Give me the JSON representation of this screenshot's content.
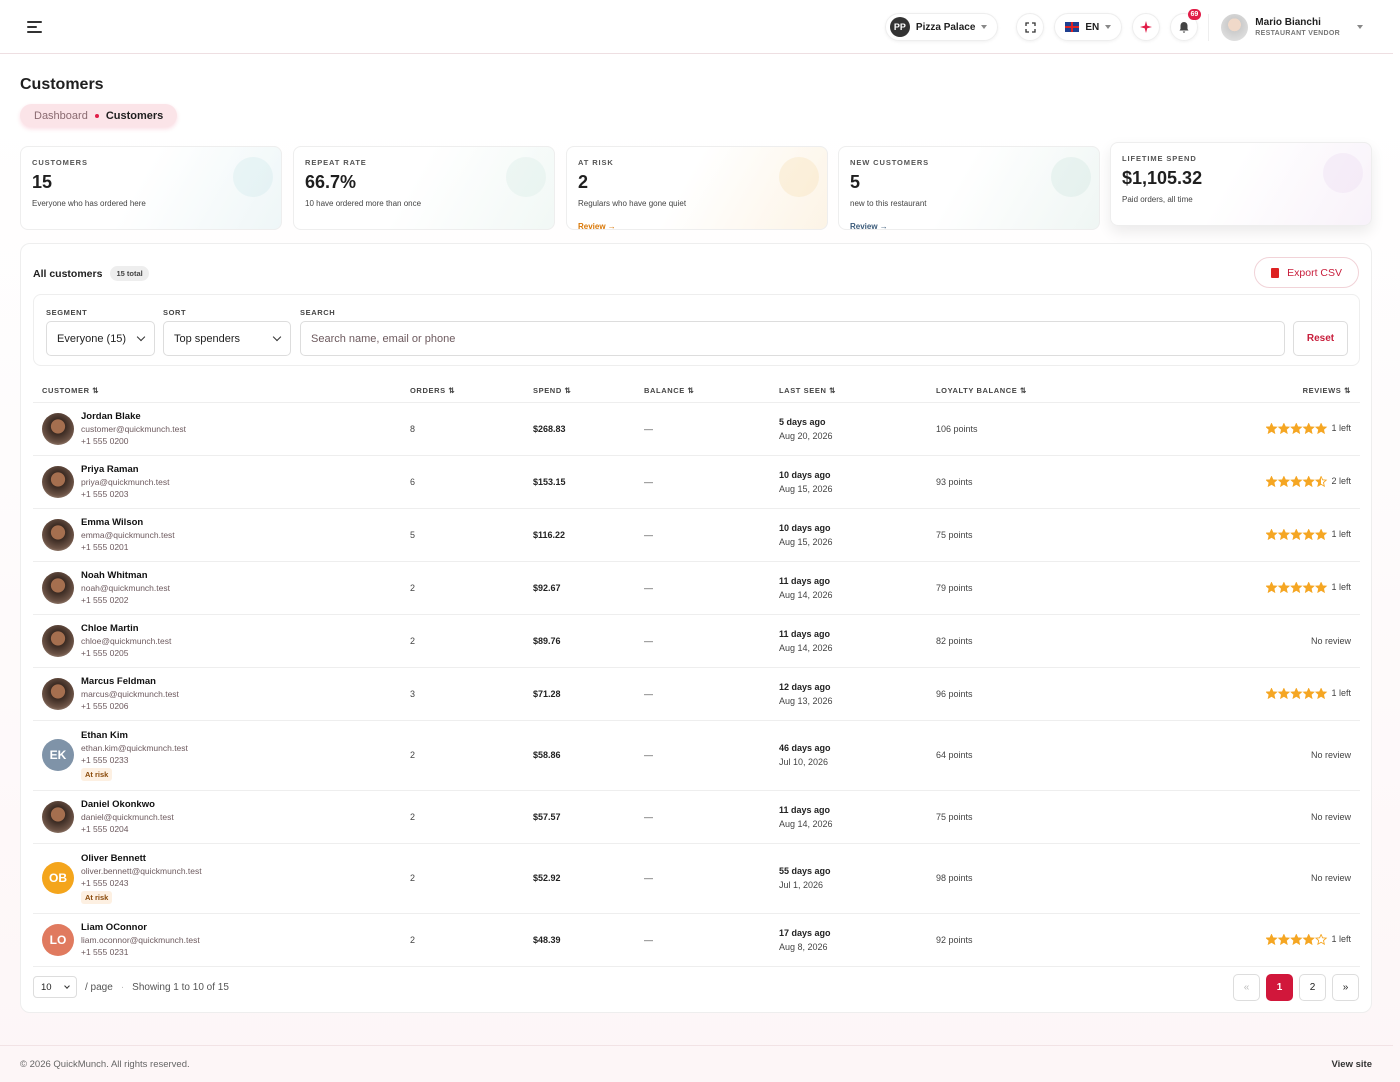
{
  "header": {
    "restaurant_initials": "PP",
    "restaurant": "Pizza Palace",
    "language": "EN",
    "notifications": "69",
    "user_name": "Mario Bianchi",
    "user_role": "RESTAURANT VENDOR"
  },
  "page": {
    "title": "Customers",
    "breadcrumb": [
      "Dashboard",
      "Customers"
    ]
  },
  "stats": [
    {
      "label": "CUSTOMERS",
      "value": "15",
      "note": "Everyone who has ordered here"
    },
    {
      "label": "REPEAT RATE",
      "value": "66.7%",
      "note": "10 have ordered more than once"
    },
    {
      "label": "AT RISK",
      "value": "2",
      "note": "Regulars who have gone quiet",
      "link": "Review"
    },
    {
      "label": "NEW CUSTOMERS",
      "value": "5",
      "note": "new to this restaurant",
      "link": "Review"
    },
    {
      "label": "LIFETIME SPEND",
      "value": "$1,105.32",
      "note": "Paid orders, all time"
    }
  ],
  "card": {
    "title": "All customers",
    "total": "15 total",
    "export": "Export CSV"
  },
  "filters": {
    "segment_label": "SEGMENT",
    "segment": "Everyone (15)",
    "sort_label": "SORT",
    "sort": "Top spenders",
    "search_label": "SEARCH",
    "search_placeholder": "Search name, email or phone",
    "reset": "Reset"
  },
  "table": {
    "columns": [
      "CUSTOMER",
      "ORDERS",
      "SPEND",
      "BALANCE",
      "LAST SEEN",
      "LOYALTY BALANCE",
      "REVIEWS"
    ],
    "rows": [
      {
        "name": "Jordan Blake",
        "email": "customer@quickmunch.test",
        "phone": "+1 555 0200",
        "orders": 8,
        "spend": "$268.83",
        "balance": "—",
        "last_seen": "5 days ago",
        "last_seen_date": "Aug 20, 2026",
        "loyalty": "106 points",
        "stars": 5,
        "reviews": "1 left"
      },
      {
        "name": "Priya Raman",
        "email": "priya@quickmunch.test",
        "phone": "+1 555 0203",
        "orders": 6,
        "spend": "$153.15",
        "balance": "—",
        "last_seen": "10 days ago",
        "last_seen_date": "Aug 15, 2026",
        "loyalty": "93 points",
        "stars": 4.5,
        "reviews": "2 left"
      },
      {
        "name": "Emma Wilson",
        "email": "emma@quickmunch.test",
        "phone": "+1 555 0201",
        "orders": 5,
        "spend": "$116.22",
        "balance": "—",
        "last_seen": "10 days ago",
        "last_seen_date": "Aug 15, 2026",
        "loyalty": "75 points",
        "stars": 5,
        "reviews": "1 left"
      },
      {
        "name": "Noah Whitman",
        "email": "noah@quickmunch.test",
        "phone": "+1 555 0202",
        "orders": 2,
        "spend": "$92.67",
        "balance": "—",
        "last_seen": "11 days ago",
        "last_seen_date": "Aug 14, 2026",
        "loyalty": "79 points",
        "stars": 5,
        "reviews": "1 left"
      },
      {
        "name": "Chloe Martin",
        "email": "chloe@quickmunch.test",
        "phone": "+1 555 0205",
        "orders": 2,
        "spend": "$89.76",
        "balance": "—",
        "last_seen": "11 days ago",
        "last_seen_date": "Aug 14, 2026",
        "loyalty": "82 points",
        "reviews": "No review"
      },
      {
        "name": "Marcus Feldman",
        "email": "marcus@quickmunch.test",
        "phone": "+1 555 0206",
        "orders": 3,
        "spend": "$71.28",
        "balance": "—",
        "last_seen": "12 days ago",
        "last_seen_date": "Aug 13, 2026",
        "loyalty": "96 points",
        "stars": 5,
        "reviews": "1 left"
      },
      {
        "name": "Ethan Kim",
        "initials": "EK",
        "avatar_color": "#7f93a8",
        "email": "ethan.kim@quickmunch.test",
        "phone": "+1 555 0233",
        "badge": "At risk",
        "orders": 2,
        "spend": "$58.86",
        "balance": "—",
        "last_seen": "46 days ago",
        "last_seen_date": "Jul 10, 2026",
        "loyalty": "64 points",
        "reviews": "No review"
      },
      {
        "name": "Daniel Okonkwo",
        "email": "daniel@quickmunch.test",
        "phone": "+1 555 0204",
        "orders": 2,
        "spend": "$57.57",
        "balance": "—",
        "last_seen": "11 days ago",
        "last_seen_date": "Aug 14, 2026",
        "loyalty": "75 points",
        "reviews": "No review"
      },
      {
        "name": "Oliver Bennett",
        "initials": "OB",
        "avatar_color": "#f4a51c",
        "email": "oliver.bennett@quickmunch.test",
        "phone": "+1 555 0243",
        "badge": "At risk",
        "orders": 2,
        "spend": "$52.92",
        "balance": "—",
        "last_seen": "55 days ago",
        "last_seen_date": "Jul 1, 2026",
        "loyalty": "98 points",
        "reviews": "No review"
      },
      {
        "name": "Liam OConnor",
        "initials": "LO",
        "avatar_color": "#e07a5f",
        "email": "liam.oconnor@quickmunch.test",
        "phone": "+1 555 0231",
        "orders": 2,
        "spend": "$48.39",
        "balance": "—",
        "last_seen": "17 days ago",
        "last_seen_date": "Aug 8, 2026",
        "loyalty": "92 points",
        "stars": 4,
        "reviews": "1 left"
      }
    ]
  },
  "pagination": {
    "per_page": "10",
    "per_page_suffix": "/ page",
    "showing": "Showing 1 to 10 of 15",
    "pages": [
      "«",
      "1",
      "2",
      "»"
    ],
    "current": "1"
  },
  "footer": {
    "copyright": "© 2026 QuickMunch. All rights reserved.",
    "link": "View site"
  }
}
